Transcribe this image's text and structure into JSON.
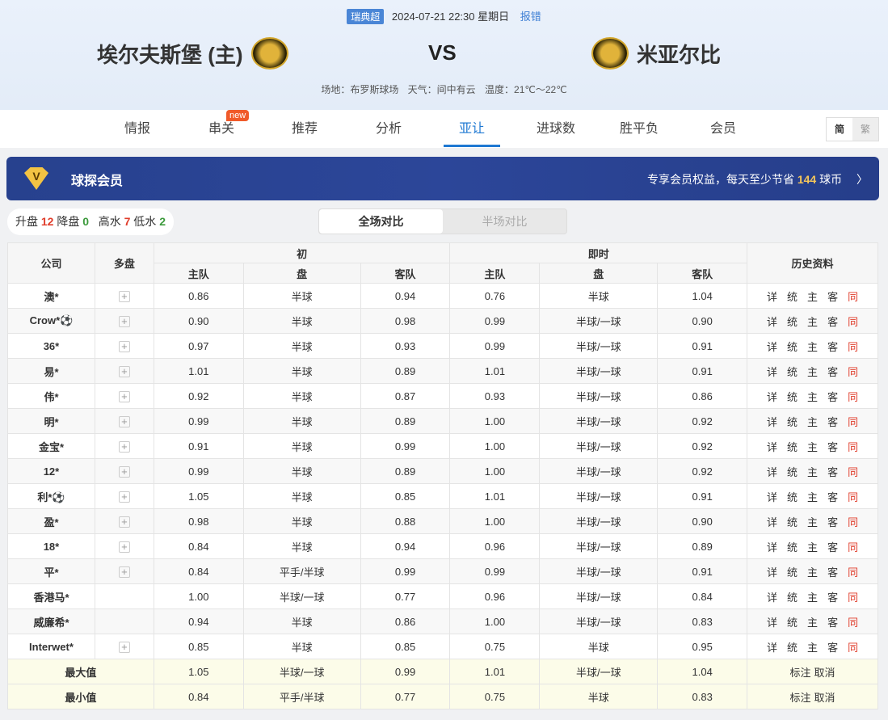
{
  "match": {
    "league": "瑞典超",
    "datetime": "2024-07-21 22:30 星期日",
    "report": "报错",
    "home": "埃尔夫斯堡 (主)",
    "away": "米亚尔比",
    "vs": "VS",
    "venue": "场地：布罗斯球场",
    "weather": "天气：间中有云",
    "temp": "温度：21℃～22℃"
  },
  "nav": {
    "tabs": [
      "情报",
      "串关",
      "推荐",
      "分析",
      "亚让",
      "进球数",
      "胜平负",
      "会员"
    ],
    "active": "亚让",
    "new_badge": "new",
    "lang_simplified": "简",
    "lang_traditional": "繁"
  },
  "banner": {
    "title": "球探会员",
    "text_before": "专享会员权益，每天至少节省",
    "amount": "144",
    "text_after": "球币"
  },
  "stats": {
    "up_label": "升盘",
    "up": "12",
    "down_label": "降盘",
    "down": "0",
    "high_label": "高水",
    "high": "7",
    "low_label": "低水",
    "low": "2"
  },
  "compare": {
    "full": "全场对比",
    "half": "半场对比"
  },
  "table": {
    "headers": {
      "company": "公司",
      "multi": "多盘",
      "initial": "初",
      "live": "即时",
      "history": "历史资料",
      "home": "主队",
      "line": "盘",
      "away": "客队"
    },
    "history_links": [
      "详",
      "统",
      "主",
      "客",
      "同"
    ],
    "rows": [
      {
        "company": "澳*",
        "multi": true,
        "i": [
          "0.86",
          "半球",
          "0.94"
        ],
        "l": [
          "0.76",
          "半球",
          "1.04"
        ]
      },
      {
        "company": "Crow*⚽",
        "multi": true,
        "i": [
          "0.90",
          "半球",
          "0.98"
        ],
        "l": [
          "0.99",
          "半球/一球",
          "0.90"
        ]
      },
      {
        "company": "36*",
        "multi": true,
        "i": [
          "0.97",
          "半球",
          "0.93"
        ],
        "l": [
          "0.99",
          "半球/一球",
          "0.91"
        ]
      },
      {
        "company": "易*",
        "multi": true,
        "i": [
          "1.01",
          "半球",
          "0.89"
        ],
        "l": [
          "1.01",
          "半球/一球",
          "0.91"
        ]
      },
      {
        "company": "伟*",
        "multi": true,
        "i": [
          "0.92",
          "半球",
          "0.87"
        ],
        "l": [
          "0.93",
          "半球/一球",
          "0.86"
        ]
      },
      {
        "company": "明*",
        "multi": true,
        "i": [
          "0.99",
          "半球",
          "0.89"
        ],
        "l": [
          "1.00",
          "半球/一球",
          "0.92"
        ]
      },
      {
        "company": "金宝*",
        "multi": true,
        "i": [
          "0.91",
          "半球",
          "0.99"
        ],
        "l": [
          "1.00",
          "半球/一球",
          "0.92"
        ]
      },
      {
        "company": "12*",
        "multi": true,
        "i": [
          "0.99",
          "半球",
          "0.89"
        ],
        "l": [
          "1.00",
          "半球/一球",
          "0.92"
        ]
      },
      {
        "company": "利*⚽",
        "multi": true,
        "i": [
          "1.05",
          "半球",
          "0.85"
        ],
        "l": [
          "1.01",
          "半球/一球",
          "0.91"
        ]
      },
      {
        "company": "盈*",
        "multi": true,
        "i": [
          "0.98",
          "半球",
          "0.88"
        ],
        "l": [
          "1.00",
          "半球/一球",
          "0.90"
        ]
      },
      {
        "company": "18*",
        "multi": true,
        "i": [
          "0.84",
          "半球",
          "0.94"
        ],
        "l": [
          "0.96",
          "半球/一球",
          "0.89"
        ]
      },
      {
        "company": "平*",
        "multi": true,
        "i": [
          "0.84",
          "平手/半球",
          "0.99"
        ],
        "l": [
          "0.99",
          "半球/一球",
          "0.91"
        ]
      },
      {
        "company": "香港马*",
        "multi": false,
        "i": [
          "1.00",
          "半球/一球",
          "0.77"
        ],
        "l": [
          "0.96",
          "半球/一球",
          "0.84"
        ]
      },
      {
        "company": "威廉希*",
        "multi": false,
        "i": [
          "0.94",
          "半球",
          "0.86"
        ],
        "l": [
          "1.00",
          "半球/一球",
          "0.83"
        ]
      },
      {
        "company": "Interwet*",
        "multi": true,
        "i": [
          "0.85",
          "半球",
          "0.85"
        ],
        "l": [
          "0.75",
          "半球",
          "0.95"
        ]
      }
    ],
    "summary": [
      {
        "label": "最大值",
        "i": [
          "1.05",
          "半球/一球",
          "0.99"
        ],
        "l": [
          "1.01",
          "半球/一球",
          "1.04"
        ]
      },
      {
        "label": "最小值",
        "i": [
          "0.84",
          "平手/半球",
          "0.77"
        ],
        "l": [
          "0.75",
          "半球",
          "0.83"
        ]
      }
    ],
    "summary_links": [
      "标注",
      "取消"
    ]
  }
}
